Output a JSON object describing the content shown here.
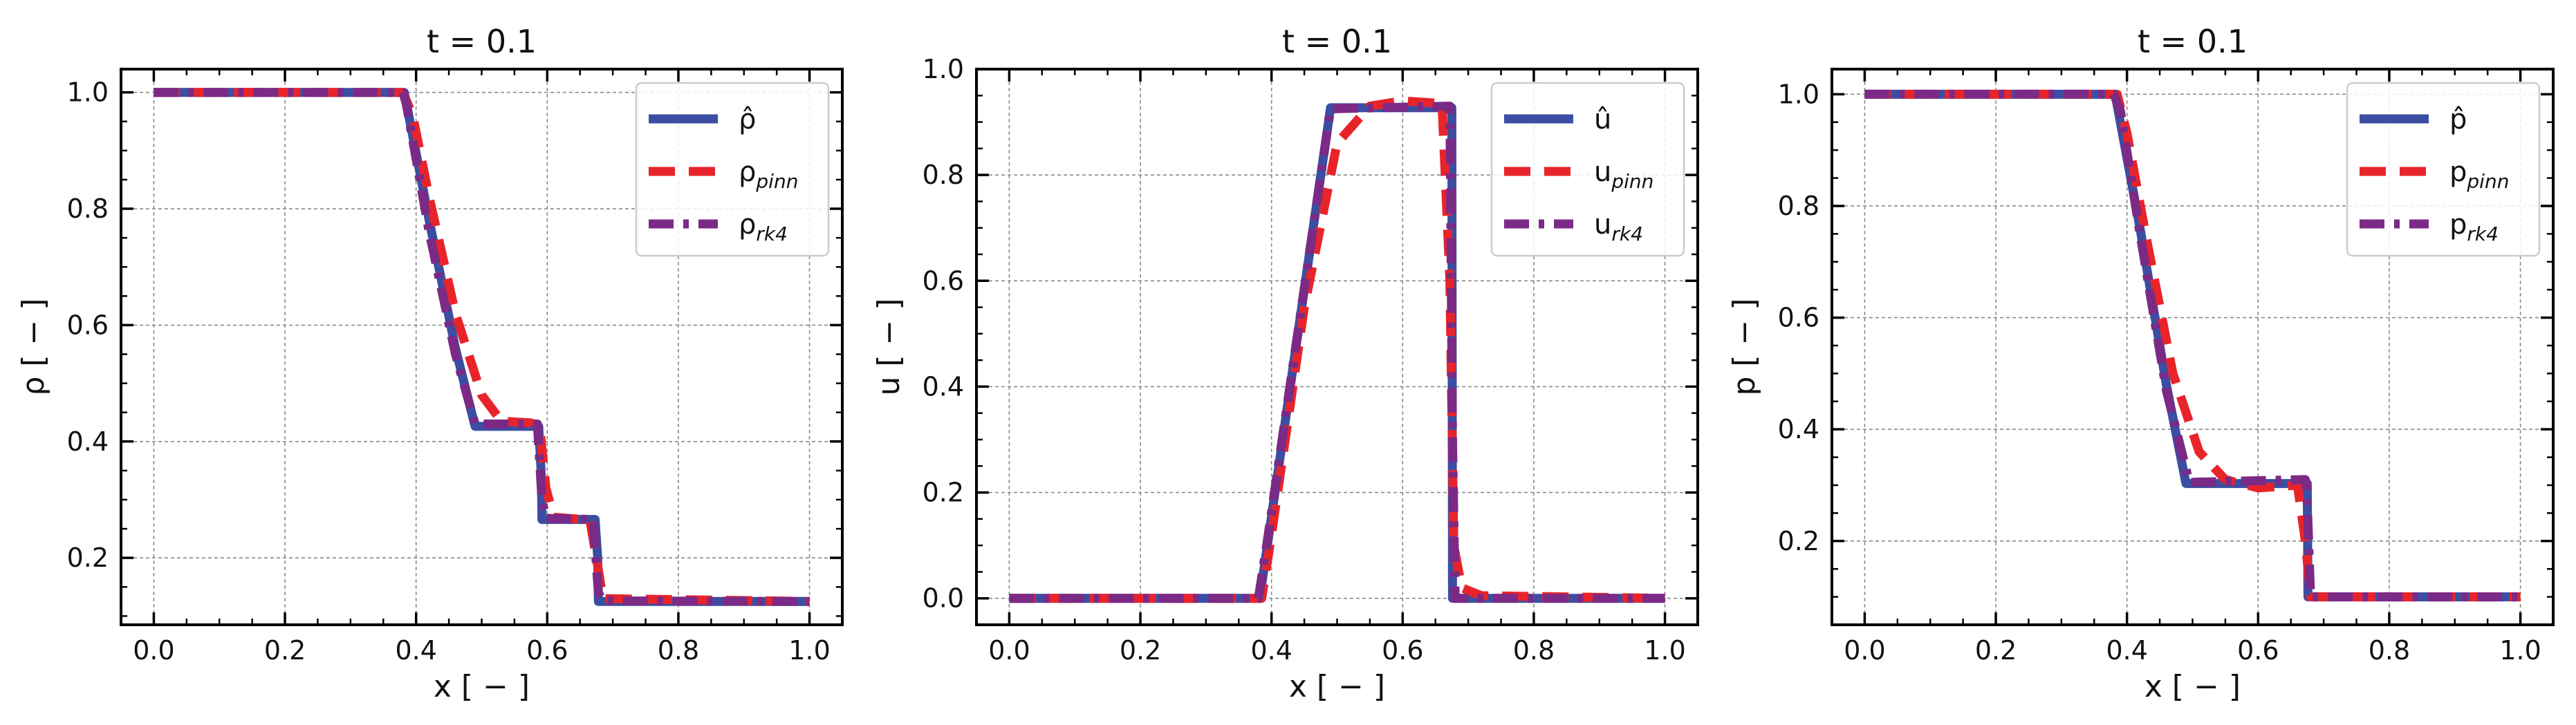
{
  "chart_data": [
    {
      "type": "line",
      "title": "t = 0.1",
      "xlabel": "x [ − ]",
      "ylabel": "ρ [ − ]",
      "xlim": [
        -0.05,
        1.05
      ],
      "ylim": [
        0.085,
        1.04
      ],
      "xticks": [
        0.0,
        0.2,
        0.4,
        0.6,
        0.8,
        1.0
      ],
      "xtick_labels": [
        "0.0",
        "0.2",
        "0.4",
        "0.6",
        "0.8",
        "1.0"
      ],
      "yticks": [
        0.2,
        0.4,
        0.6,
        0.8,
        1.0
      ],
      "ytick_labels": [
        "0.2",
        "0.4",
        "0.6",
        "0.8",
        "1.0"
      ],
      "grid": true,
      "legend_position": "top-right",
      "series": [
        {
          "name": "ρ̂",
          "name_main": "ρ̂",
          "name_sub": "",
          "color": "#3b4ea2",
          "dash": "solid",
          "x": [
            0.0,
            0.382,
            0.42,
            0.46,
            0.49,
            0.587,
            0.591,
            0.592,
            0.673,
            0.677,
            0.678,
            1.0
          ],
          "y": [
            1.0,
            1.0,
            0.78,
            0.56,
            0.426,
            0.426,
            0.34,
            0.266,
            0.266,
            0.2,
            0.125,
            0.125
          ]
        },
        {
          "name": "ρpinn",
          "name_main": "ρ",
          "name_sub": "pinn",
          "color": "#e8242b",
          "dash": "dashed",
          "x": [
            0.0,
            0.38,
            0.395,
            0.42,
            0.46,
            0.5,
            0.53,
            0.575,
            0.59,
            0.598,
            0.61,
            0.665,
            0.675,
            0.685,
            1.0
          ],
          "y": [
            1.0,
            1.0,
            0.96,
            0.82,
            0.62,
            0.48,
            0.435,
            0.432,
            0.41,
            0.32,
            0.27,
            0.265,
            0.2,
            0.13,
            0.125
          ]
        },
        {
          "name": "ρrk4",
          "name_main": "ρ",
          "name_sub": "rk4",
          "color": "#7b2a86",
          "dash": "dashdot",
          "x": [
            0.0,
            0.38,
            0.385,
            0.42,
            0.46,
            0.49,
            0.585,
            0.592,
            0.598,
            0.67,
            0.678,
            0.685,
            1.0
          ],
          "y": [
            1.0,
            1.0,
            0.98,
            0.76,
            0.55,
            0.43,
            0.43,
            0.3,
            0.268,
            0.266,
            0.14,
            0.126,
            0.125
          ]
        }
      ]
    },
    {
      "type": "line",
      "title": "t = 0.1",
      "xlabel": "x [ − ]",
      "ylabel": "u [ − ]",
      "xlim": [
        -0.05,
        1.05
      ],
      "ylim": [
        -0.05,
        1.0
      ],
      "xticks": [
        0.0,
        0.2,
        0.4,
        0.6,
        0.8,
        1.0
      ],
      "xtick_labels": [
        "0.0",
        "0.2",
        "0.4",
        "0.6",
        "0.8",
        "1.0"
      ],
      "yticks": [
        0.0,
        0.2,
        0.4,
        0.6,
        0.8,
        1.0
      ],
      "ytick_labels": [
        "0.0",
        "0.2",
        "0.4",
        "0.6",
        "0.8",
        "1.0"
      ],
      "grid": true,
      "legend_position": "top-right",
      "series": [
        {
          "name": "û",
          "name_main": "û",
          "name_sub": "",
          "color": "#3b4ea2",
          "dash": "solid",
          "x": [
            0.0,
            0.382,
            0.49,
            0.675,
            0.676,
            1.0
          ],
          "y": [
            0.0,
            0.0,
            0.927,
            0.927,
            0.0,
            0.0
          ]
        },
        {
          "name": "upinn",
          "name_main": "u",
          "name_sub": "pinn",
          "color": "#e8242b",
          "dash": "dashed",
          "x": [
            0.0,
            0.385,
            0.4,
            0.45,
            0.5,
            0.55,
            0.6,
            0.66,
            0.672,
            0.678,
            0.69,
            0.72,
            1.0
          ],
          "y": [
            0.0,
            0.0,
            0.12,
            0.55,
            0.86,
            0.93,
            0.94,
            0.935,
            0.6,
            0.1,
            0.02,
            0.005,
            0.0
          ]
        },
        {
          "name": "urk4",
          "name_main": "u",
          "name_sub": "rk4",
          "color": "#7b2a86",
          "dash": "dashdot",
          "x": [
            0.0,
            0.38,
            0.395,
            0.49,
            0.672,
            0.676,
            0.68,
            1.0
          ],
          "y": [
            0.0,
            0.0,
            0.12,
            0.925,
            0.93,
            0.3,
            0.0,
            0.0
          ]
        }
      ]
    },
    {
      "type": "line",
      "title": "t = 0.1",
      "xlabel": "x [ − ]",
      "ylabel": "p [ − ]",
      "xlim": [
        -0.05,
        1.05
      ],
      "ylim": [
        0.05,
        1.045
      ],
      "xticks": [
        0.0,
        0.2,
        0.4,
        0.6,
        0.8,
        1.0
      ],
      "xtick_labels": [
        "0.0",
        "0.2",
        "0.4",
        "0.6",
        "0.8",
        "1.0"
      ],
      "yticks": [
        0.2,
        0.4,
        0.6,
        0.8,
        1.0
      ],
      "ytick_labels": [
        "0.2",
        "0.4",
        "0.6",
        "0.8",
        "1.0"
      ],
      "grid": true,
      "legend_position": "top-right",
      "series": [
        {
          "name": "p̂",
          "name_main": "p̂",
          "name_sub": "",
          "color": "#3b4ea2",
          "dash": "solid",
          "x": [
            0.0,
            0.382,
            0.42,
            0.46,
            0.49,
            0.675,
            0.676,
            1.0
          ],
          "y": [
            1.0,
            1.0,
            0.76,
            0.48,
            0.303,
            0.303,
            0.1,
            0.1
          ]
        },
        {
          "name": "ppinn",
          "name_main": "p",
          "name_sub": "pinn",
          "color": "#e8242b",
          "dash": "dashed",
          "x": [
            0.0,
            0.385,
            0.4,
            0.43,
            0.47,
            0.51,
            0.55,
            0.6,
            0.66,
            0.672,
            0.68,
            1.0
          ],
          "y": [
            1.0,
            1.0,
            0.93,
            0.74,
            0.5,
            0.36,
            0.31,
            0.295,
            0.3,
            0.2,
            0.1,
            0.1
          ]
        },
        {
          "name": "prk4",
          "name_main": "p",
          "name_sub": "rk4",
          "color": "#7b2a86",
          "dash": "dashdot",
          "x": [
            0.0,
            0.38,
            0.39,
            0.42,
            0.46,
            0.495,
            0.672,
            0.674,
            0.68,
            1.0
          ],
          "y": [
            1.0,
            1.0,
            0.97,
            0.75,
            0.47,
            0.305,
            0.31,
            0.3,
            0.1,
            0.1
          ]
        }
      ]
    }
  ]
}
